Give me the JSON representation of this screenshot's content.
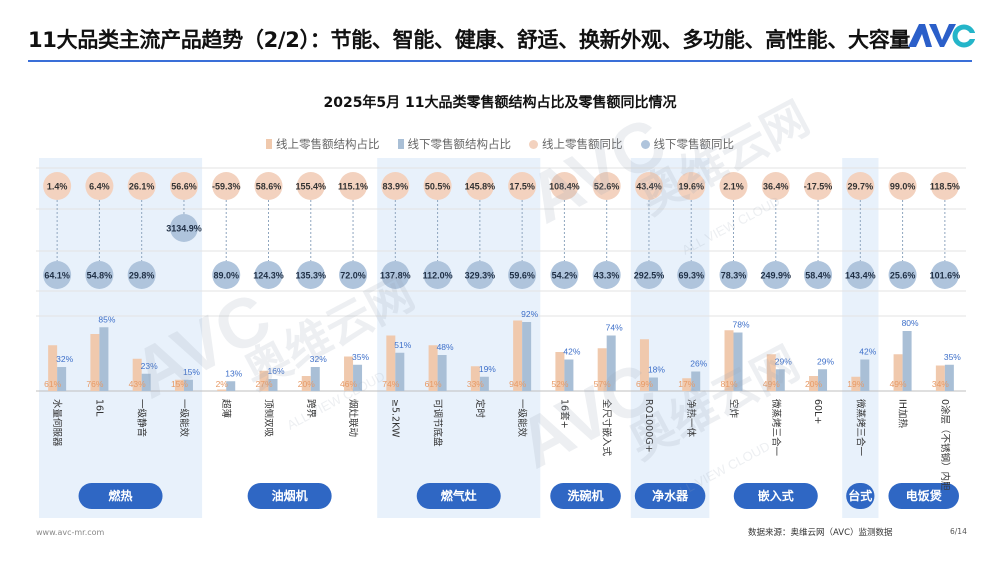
{
  "header": {
    "title": "11大品类主流产品趋势（2/2）：节能、智能、健康、舒适、换新外观、多功能、高性能、大容量",
    "logo_text": "AVC"
  },
  "watermark": {
    "brand_cn": "奥维云网",
    "brand_en": "ALL VIEW CLOUD",
    "brand_mark": "AVC"
  },
  "footer": {
    "url": "www.avc-mr.com",
    "source": "数据来源：奥维云网（AVC）监测数据",
    "page": "6/14"
  },
  "colors": {
    "online_bar": "#f0c9ad",
    "offline_bar": "#a9bfd6",
    "online_circle": "#f3d2bf",
    "offline_circle": "#afc4dc",
    "panel": "#e8f1fb",
    "category_button": "#2f67c4",
    "online_value_text": "#e79a66",
    "offline_value_text": "#3d6fc9"
  },
  "chart_data": {
    "type": "bar",
    "title": "2025年5月 11大品类零售额结构占比及零售额同比情况",
    "legend": [
      "线上零售额结构占比",
      "线下零售额结构占比",
      "线上零售额同比",
      "线下零售额同比"
    ],
    "groups": [
      {
        "name": "燃热",
        "items": [
          {
            "label": "水量伺服器",
            "online_share": "61%",
            "offline_share": "32%",
            "online_yoy": "1.4%",
            "offline_yoy": "64.1%"
          },
          {
            "label": "16L",
            "online_share": "76%",
            "offline_share": "85%",
            "online_yoy": "6.4%",
            "offline_yoy": "54.8%"
          },
          {
            "label": "一级静音",
            "online_share": "43%",
            "offline_share": "23%",
            "online_yoy": "26.1%",
            "offline_yoy": "29.8%"
          },
          {
            "label": "一级能效",
            "online_share": "15%",
            "offline_share": "15%",
            "online_yoy": "56.6%",
            "offline_yoy": "3134.9%"
          }
        ]
      },
      {
        "name": "油烟机",
        "items": [
          {
            "label": "超薄",
            "online_share": "2%",
            "offline_share": "13%",
            "online_yoy": "-59.3%",
            "offline_yoy": "89.0%"
          },
          {
            "label": "顶侧双吸",
            "online_share": "27%",
            "offline_share": "16%",
            "online_yoy": "58.6%",
            "offline_yoy": "124.3%"
          },
          {
            "label": "跨界",
            "online_share": "20%",
            "offline_share": "32%",
            "online_yoy": "155.4%",
            "offline_yoy": "135.3%"
          },
          {
            "label": "烟灶联动",
            "online_share": "46%",
            "offline_share": "35%",
            "online_yoy": "115.1%",
            "offline_yoy": "72.0%"
          }
        ]
      },
      {
        "name": "燃气灶",
        "items": [
          {
            "label": "≥5.2KW",
            "online_share": "74%",
            "offline_share": "51%",
            "online_yoy": "83.9%",
            "offline_yoy": "137.8%"
          },
          {
            "label": "可调节底盘",
            "online_share": "61%",
            "offline_share": "48%",
            "online_yoy": "50.5%",
            "offline_yoy": "112.0%"
          },
          {
            "label": "定时",
            "online_share": "33%",
            "offline_share": "19%",
            "online_yoy": "145.8%",
            "offline_yoy": "329.3%"
          },
          {
            "label": "一级能效",
            "online_share": "94%",
            "offline_share": "92%",
            "online_yoy": "17.5%",
            "offline_yoy": "59.6%"
          }
        ]
      },
      {
        "name": "洗碗机",
        "items": [
          {
            "label": "16套+",
            "online_share": "52%",
            "offline_share": "42%",
            "online_yoy": "108.4%",
            "offline_yoy": "54.2%"
          },
          {
            "label": "全尺寸嵌入式",
            "online_share": "57%",
            "offline_share": "74%",
            "online_yoy": "52.6%",
            "offline_yoy": "43.3%"
          }
        ]
      },
      {
        "name": "净水器",
        "items": [
          {
            "label": "RO1000G+",
            "online_share": "69%",
            "offline_share": "18%",
            "online_yoy": "43.4%",
            "offline_yoy": "292.5%"
          },
          {
            "label": "净热一体",
            "online_share": "17%",
            "offline_share": "26%",
            "online_yoy": "19.6%",
            "offline_yoy": "69.3%"
          }
        ]
      },
      {
        "name": "嵌入式",
        "items": [
          {
            "label": "空炸",
            "online_share": "81%",
            "offline_share": "78%",
            "online_yoy": "2.1%",
            "offline_yoy": "78.3%"
          },
          {
            "label": "微蒸烤三合一",
            "online_share": "49%",
            "offline_share": "29%",
            "online_yoy": "36.4%",
            "offline_yoy": "249.9%"
          },
          {
            "label": "60L+",
            "online_share": "20%",
            "offline_share": "29%",
            "online_yoy": "-17.5%",
            "offline_yoy": "58.4%"
          }
        ]
      },
      {
        "name": "台式",
        "items": [
          {
            "label": "微蒸烤三合一",
            "online_share": "19%",
            "offline_share": "42%",
            "online_yoy": "29.7%",
            "offline_yoy": "143.4%"
          }
        ]
      },
      {
        "name": "电饭煲",
        "items": [
          {
            "label": "IH加热",
            "online_share": "49%",
            "offline_share": "80%",
            "online_yoy": "99.0%",
            "offline_yoy": "25.6%"
          },
          {
            "label": "0涂层（不锈钢）内胆",
            "online_share": "34%",
            "offline_share": "35%",
            "online_yoy": "118.5%",
            "offline_yoy": "101.6%"
          }
        ]
      }
    ],
    "ylim": [
      0,
      100
    ],
    "grid": true,
    "legend_position": "top"
  }
}
